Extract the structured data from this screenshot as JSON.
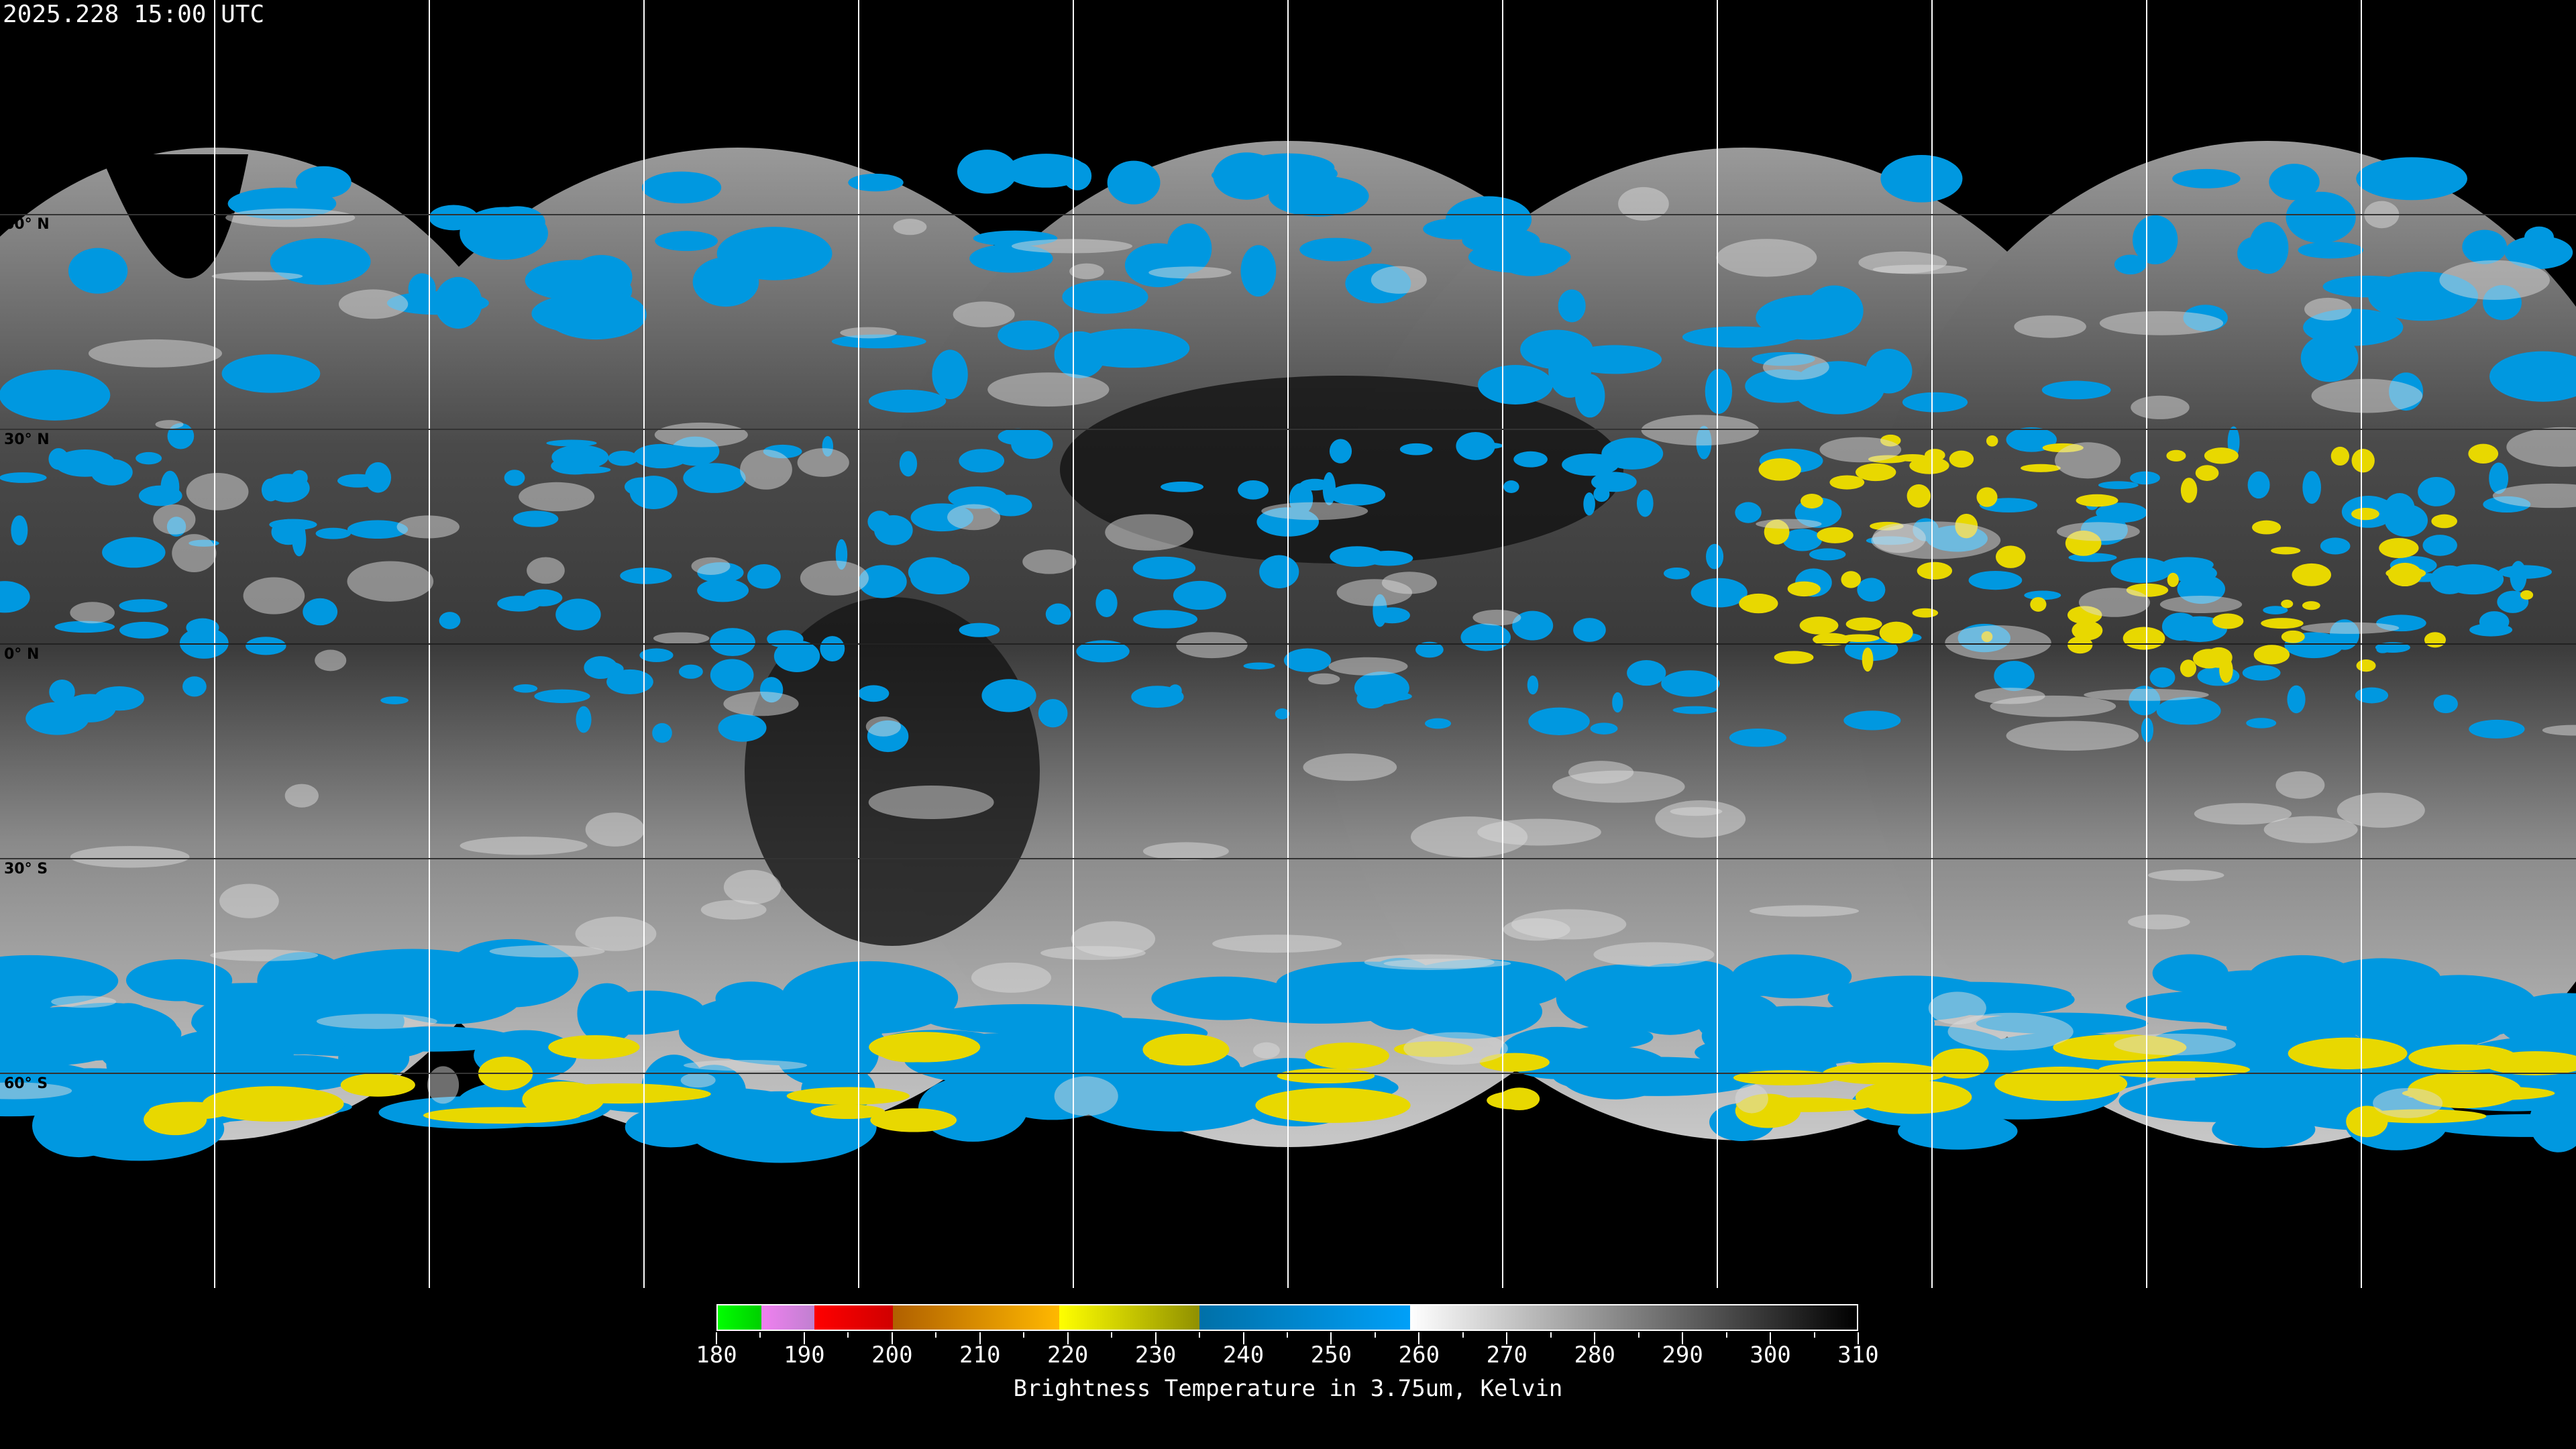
{
  "title": "2025.228 15:00 UTC",
  "latitude_labels": [
    "60° N",
    "30° N",
    "0° N",
    "30° S",
    "60° S"
  ],
  "colorbar": {
    "label": "Brightness Temperature in 3.75um, Kelvin",
    "min": 180,
    "max": 310,
    "tick_labels": [
      "180",
      "190",
      "200",
      "210",
      "220",
      "230",
      "240",
      "250",
      "260",
      "270",
      "280",
      "290",
      "300",
      "310"
    ],
    "segments": [
      {
        "from": 180,
        "to": 185,
        "colors": [
          "#00ff00",
          "#00d000"
        ]
      },
      {
        "from": 185,
        "to": 191,
        "colors": [
          "#f080f0",
          "#c080d0"
        ]
      },
      {
        "from": 191,
        "to": 200,
        "colors": [
          "#ff0000",
          "#d00000"
        ]
      },
      {
        "from": 200,
        "to": 219,
        "colors": [
          "#b06000",
          "#ffb800"
        ]
      },
      {
        "from": 219,
        "to": 235,
        "colors": [
          "#ffff00",
          "#909000"
        ]
      },
      {
        "from": 235,
        "to": 259,
        "colors": [
          "#0070a8",
          "#00a0f8"
        ]
      },
      {
        "from": 259,
        "to": 310,
        "colors": [
          "#ffffff",
          "#000000"
        ]
      }
    ]
  },
  "colors": {
    "cloud_cold": "#0098e0",
    "cloud_colder": "#e8d800",
    "background": "#000000",
    "grid": "#ffffff"
  }
}
